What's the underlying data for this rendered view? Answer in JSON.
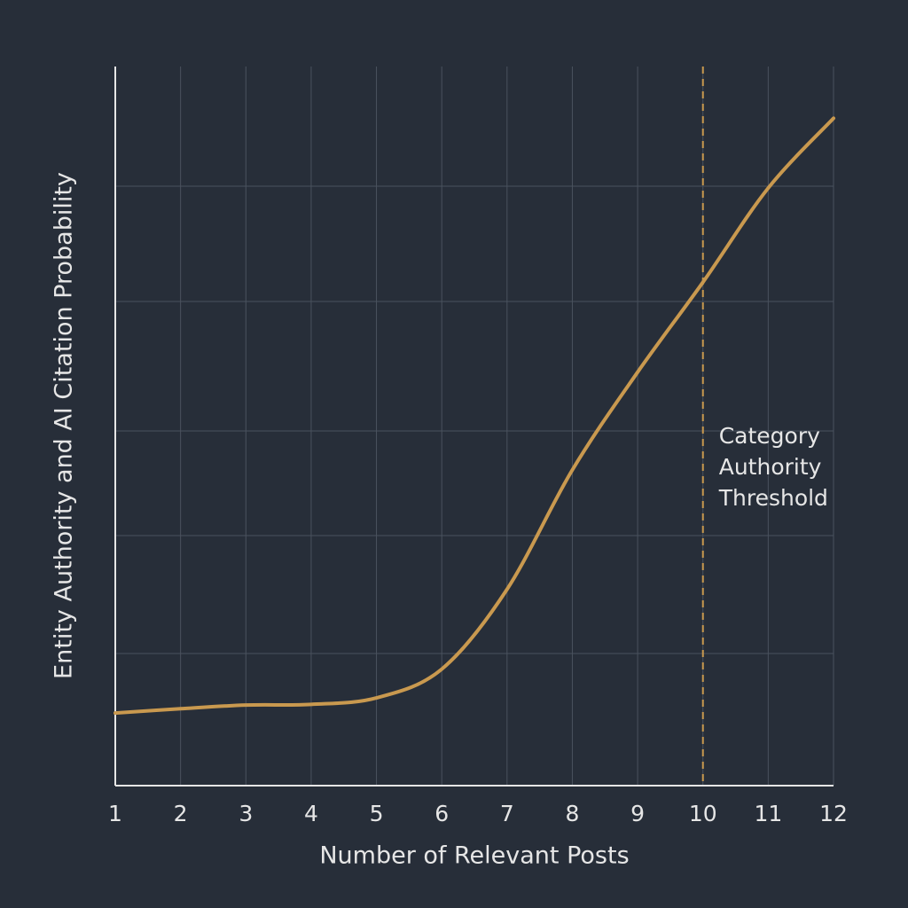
{
  "chart_data": {
    "type": "line",
    "x_label": "Number of Relevant Posts",
    "y_label": "Entity Authority and AI Citation Probability",
    "x": [
      1,
      2,
      3,
      4,
      5,
      6,
      7,
      8,
      9,
      10,
      11,
      12
    ],
    "series": [
      {
        "color": "#c9994f",
        "values": [
          0.101,
          0.107,
          0.112,
          0.113,
          0.122,
          0.162,
          0.273,
          0.439,
          0.575,
          0.7,
          0.831,
          0.928
        ]
      }
    ],
    "xlim": [
      1,
      12
    ],
    "xticks": [
      1,
      2,
      3,
      4,
      5,
      6,
      7,
      8,
      9,
      10,
      11,
      12
    ],
    "ylim": [
      0,
      1
    ],
    "grid": true,
    "threshold": {
      "x": 10,
      "color": "#c9994f",
      "label_lines": [
        "Category",
        "Authority",
        "Threshold"
      ]
    }
  }
}
